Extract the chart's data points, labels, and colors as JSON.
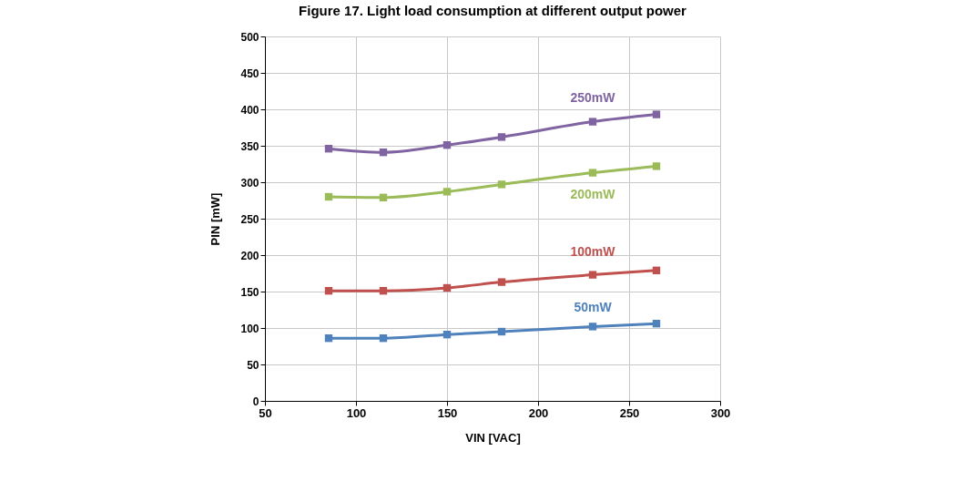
{
  "chart_data": {
    "type": "line",
    "title": "Figure 17. Light load consumption at different output power",
    "xlabel": "VIN [VAC]",
    "ylabel": "PIN  [mW]",
    "x": [
      85,
      115,
      150,
      180,
      230,
      265
    ],
    "series": [
      {
        "name": "250mW",
        "color": "#8064a2",
        "values": [
          346,
          341,
          351,
          362,
          383,
          393
        ]
      },
      {
        "name": "200mW",
        "color": "#9bbb59",
        "values": [
          280,
          279,
          287,
          297,
          313,
          322
        ]
      },
      {
        "name": "100mW",
        "color": "#c0504d",
        "values": [
          151,
          151,
          155,
          163,
          173,
          179
        ]
      },
      {
        "name": "50mW",
        "color": "#4f81bd",
        "values": [
          86,
          86,
          91,
          95,
          102,
          106
        ]
      }
    ],
    "xlim": [
      50,
      300
    ],
    "xticks": [
      50,
      100,
      150,
      200,
      250,
      300
    ],
    "ylim": [
      0,
      500
    ],
    "yticks": [
      0,
      50,
      100,
      150,
      200,
      250,
      300,
      350,
      400,
      450,
      500
    ],
    "grid": true,
    "marker": "square",
    "legend": false
  }
}
